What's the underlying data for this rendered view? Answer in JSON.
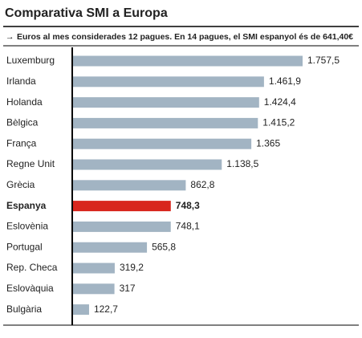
{
  "chart_data": {
    "type": "hbar",
    "title": "Comparativa SMI a Europa",
    "subtitle": "Euros al mes considerades 12 pagues. En 14 pagues, el SMI espanyol és de 641,40€",
    "categories": [
      "Luxemburg",
      "Irlanda",
      "Holanda",
      "Bèlgica",
      "França",
      "Regne Unit",
      "Grècia",
      "Espanya",
      "Eslovènia",
      "Portugal",
      "Rep. Checa",
      "Eslovàquia",
      "Bulgària"
    ],
    "values": [
      1757.5,
      1461.9,
      1424.4,
      1415.2,
      1365,
      1138.5,
      862.8,
      748.3,
      748.1,
      565.8,
      319.2,
      317,
      122.7
    ],
    "value_labels": [
      "1.757,5",
      "1.461,9",
      "1.424,4",
      "1.415,2",
      "1.365",
      "1.138,5",
      "862,8",
      "748,3",
      "748,1",
      "565,8",
      "319,2",
      "317",
      "122,7"
    ],
    "colors": [
      "#a2b4c3",
      "#a2b4c3",
      "#a2b4c3",
      "#a2b4c3",
      "#a2b4c3",
      "#a2b4c3",
      "#a2b4c3",
      "#d8261d",
      "#a2b4c3",
      "#a2b4c3",
      "#a2b4c3",
      "#a2b4c3",
      "#a2b4c3"
    ],
    "highlight_color": "#d8261d"
  }
}
